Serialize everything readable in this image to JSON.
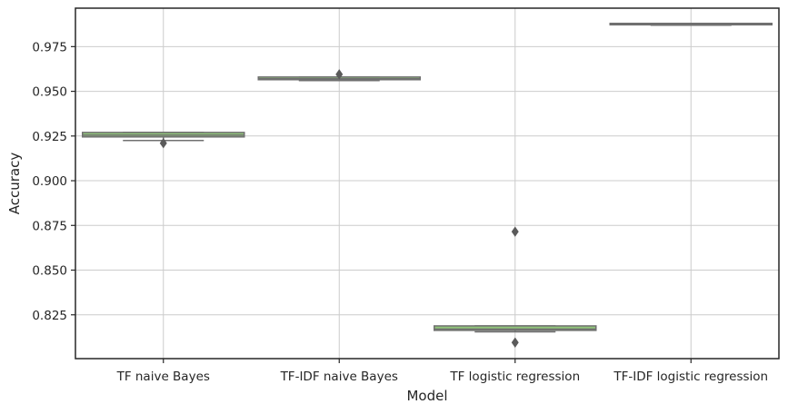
{
  "chart_data": {
    "type": "box",
    "xlabel": "Model",
    "ylabel": "Accuracy",
    "categories": [
      "TF naive Bayes",
      "TF-IDF naive Bayes",
      "TF logistic regression",
      "TF-IDF logistic regression"
    ],
    "yticks": [
      0.825,
      0.85,
      0.875,
      0.9,
      0.925,
      0.95,
      0.975
    ],
    "ytick_labels": [
      "0.825",
      "0.850",
      "0.875",
      "0.900",
      "0.925",
      "0.950",
      "0.975"
    ],
    "ylim": [
      0.8005,
      0.9965
    ],
    "grid": true,
    "box_color": "#90c47a",
    "line_color": "#707070",
    "boxes": [
      {
        "category": "TF naive Bayes",
        "whisker_low": 0.9225,
        "q1": 0.9245,
        "median": 0.9255,
        "q3": 0.927,
        "whisker_high": 0.927,
        "outliers": [
          0.921
        ]
      },
      {
        "category": "TF-IDF naive Bayes",
        "whisker_low": 0.956,
        "q1": 0.9565,
        "median": 0.957,
        "q3": 0.958,
        "whisker_high": 0.958,
        "outliers": [
          0.9595
        ]
      },
      {
        "category": "TF logistic regression",
        "whisker_low": 0.8155,
        "q1": 0.8163,
        "median": 0.817,
        "q3": 0.8188,
        "whisker_high": 0.8188,
        "outliers": [
          0.8715,
          0.8095
        ]
      },
      {
        "category": "TF-IDF logistic regression",
        "whisker_low": 0.987,
        "q1": 0.9872,
        "median": 0.9876,
        "q3": 0.988,
        "whisker_high": 0.988,
        "outliers": []
      }
    ]
  }
}
